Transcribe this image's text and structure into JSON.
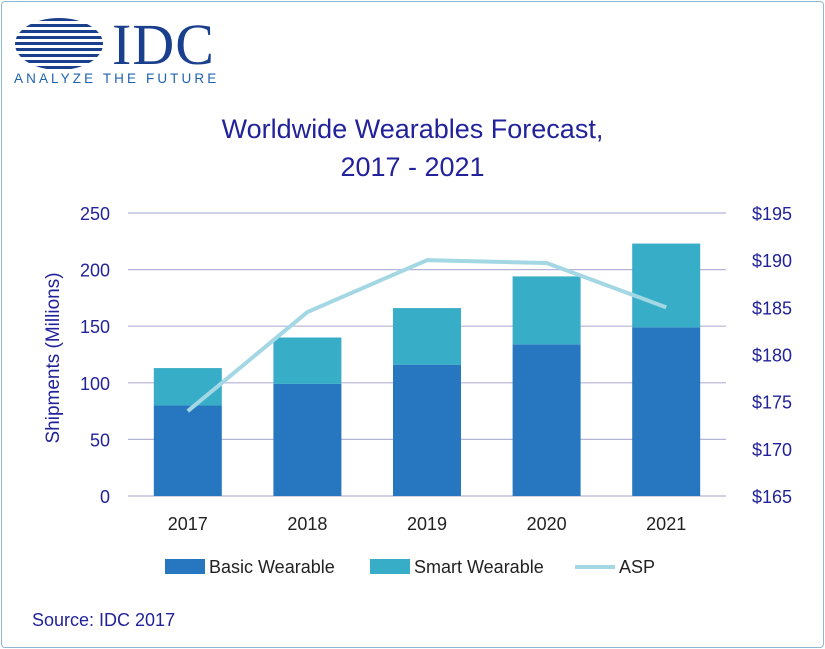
{
  "logo": {
    "wordmark": "IDC",
    "tagline": "ANALYZE THE FUTURE",
    "color": "#1a3f8c"
  },
  "chart_data": {
    "type": "bar",
    "stacked": true,
    "title_line1": "Worldwide Wearables Forecast,",
    "title_line2": "2017 - 2021",
    "ylabel": "Shipments (Millions)",
    "categories": [
      "2017",
      "2018",
      "2019",
      "2020",
      "2021"
    ],
    "ylim": [
      0,
      250
    ],
    "yticks": [
      0,
      50,
      100,
      150,
      200,
      250
    ],
    "y2lim": [
      165,
      195
    ],
    "y2ticks": [
      "$165",
      "$170",
      "$175",
      "$180",
      "$185",
      "$190",
      "$195"
    ],
    "series": [
      {
        "name": "Basic Wearable",
        "type": "bar",
        "color": "#2677c0",
        "values": [
          80,
          99,
          116,
          134,
          149
        ]
      },
      {
        "name": "Smart Wearable",
        "type": "bar",
        "color": "#37adc8",
        "values": [
          33,
          41,
          50,
          60,
          74
        ]
      },
      {
        "name": "ASP",
        "type": "line",
        "axis": "right",
        "color": "#a3d7e3",
        "values": [
          174,
          184.5,
          190,
          189.7,
          185
        ]
      }
    ],
    "grid": true,
    "legend_position": "bottom"
  },
  "source": "Source: IDC 2017"
}
